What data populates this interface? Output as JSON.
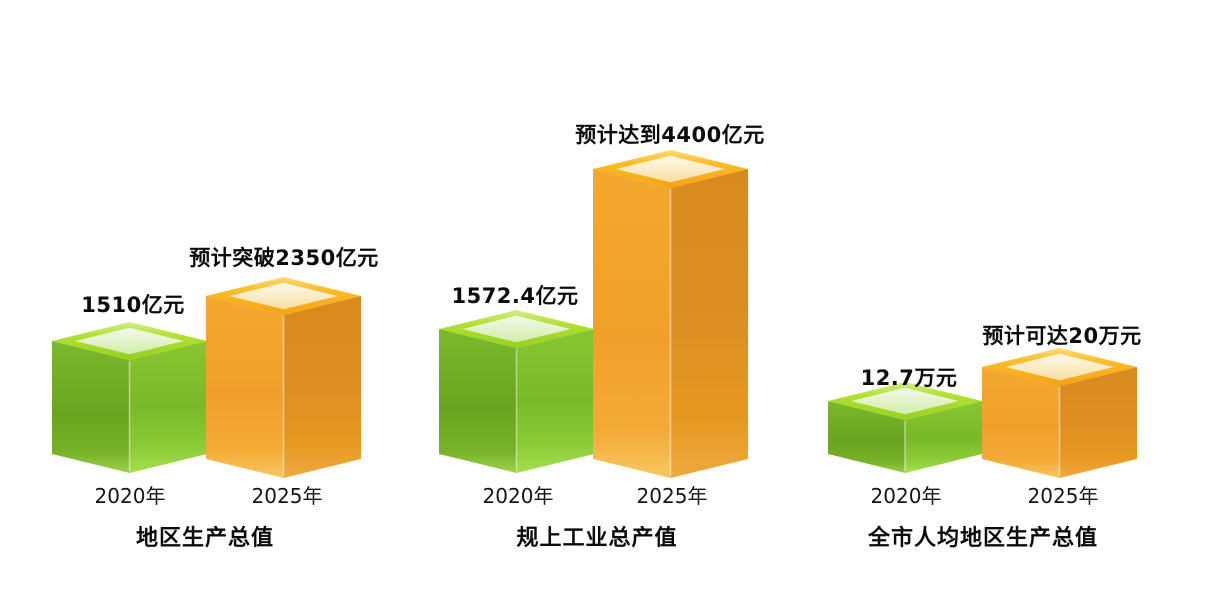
{
  "page": {
    "background": "#ffffff",
    "text_color": "#0b0b0b"
  },
  "colors": {
    "green": {
      "left": [
        "#7cb92c",
        "#6aa41f",
        "#78b228",
        "#9ed34a"
      ],
      "right": [
        "#8ac633",
        "#79b828",
        "#8ccb37",
        "#a6de4e"
      ],
      "rim": [
        "#d3ee8a",
        "#b2e035",
        "#97d01e"
      ],
      "inner": [
        "#f3fae9",
        "#d3ecab"
      ],
      "edge_highlight": "rgba(255,255,255,0.45)"
    },
    "orange": {
      "left": [
        "#f3a82d",
        "#f0a02a",
        "#f3ab36",
        "#f9c661"
      ],
      "right": [
        "#d98a1d",
        "#dd8f24",
        "#e6981f",
        "#efa940"
      ],
      "rim": [
        "#fddc75",
        "#fabc28",
        "#f4a313"
      ],
      "inner": [
        "#fdf8ea",
        "#f8e0a2"
      ],
      "edge_highlight": "rgba(255,255,255,0.45)"
    }
  },
  "chart_data": [
    {
      "type": "bar",
      "title": "地区生产总值",
      "unit": "亿元",
      "categories": [
        "2020年",
        "2025年"
      ],
      "values": [
        1510,
        2350
      ],
      "projected": [
        false,
        true
      ],
      "value_labels": [
        "1510亿元",
        "预计突破2350亿元"
      ],
      "bar_colors": [
        "green",
        "orange"
      ],
      "legend": "none",
      "grid": false
    },
    {
      "type": "bar",
      "title": "规上工业总产值",
      "unit": "亿元",
      "categories": [
        "2020年",
        "2025年"
      ],
      "values": [
        1572.4,
        4400
      ],
      "projected": [
        false,
        true
      ],
      "value_labels": [
        "1572.4亿元",
        "预计达到4400亿元"
      ],
      "bar_colors": [
        "green",
        "orange"
      ],
      "legend": "none",
      "grid": false
    },
    {
      "type": "bar",
      "title": "全市人均地区生产总值",
      "unit": "万元",
      "categories": [
        "2020年",
        "2025年"
      ],
      "values": [
        12.7,
        20
      ],
      "projected": [
        false,
        true
      ],
      "value_labels": [
        "12.7万元",
        "预计可达20万元"
      ],
      "bar_colors": [
        "green",
        "orange"
      ],
      "legend": "none",
      "grid": false
    }
  ]
}
